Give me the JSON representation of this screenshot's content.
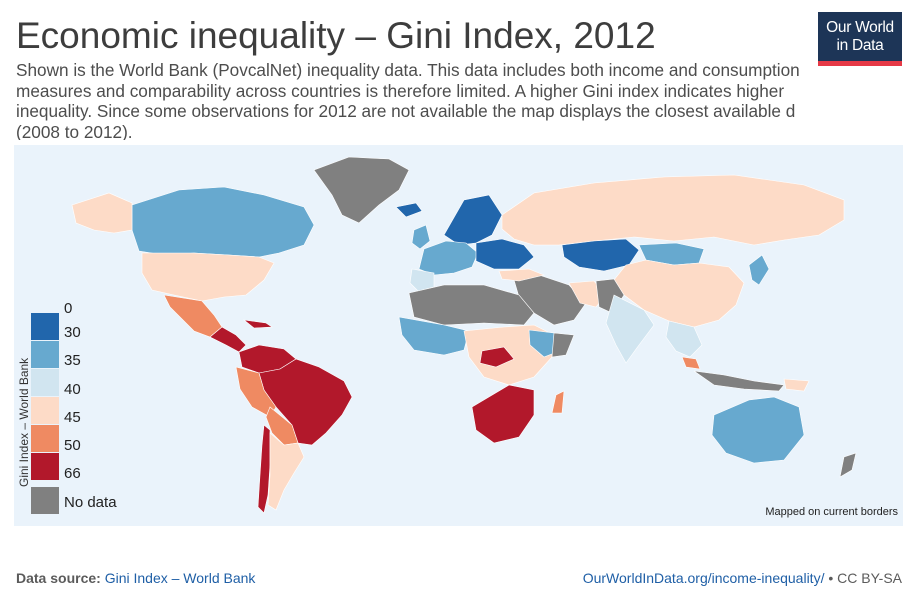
{
  "title": "Economic inequality – Gini Index, 2012",
  "subtitle": {
    "line1": "Shown is the World Bank (PovcalNet) inequality data. This data includes both income and consumption",
    "line2": "measures and comparability across countries is therefore limited. A higher Gini index indicates higher",
    "line3": "inequality. Since some observations for 2012 are not available the map displays the closest available d",
    "line4": "(2008 to 2012)."
  },
  "logo": {
    "line1": "Our World",
    "line2": "in Data"
  },
  "legend": {
    "title": "Gini Index – World Bank",
    "ticks": [
      "0",
      "30",
      "35",
      "40",
      "45",
      "50",
      "66"
    ],
    "no_data": "No data",
    "colors": [
      "#2166ac",
      "#67a9cf",
      "#d1e5f0",
      "#fddbc7",
      "#ef8a62",
      "#b2182b"
    ],
    "no_data_color": "#808080"
  },
  "map_note": "Mapped on current borders",
  "footer": {
    "source_label": "Data source:",
    "source_link": "Gini Index – World Bank",
    "url": "OurWorldInData.org/income-inequality/",
    "separator": "•",
    "license": "CC BY-SA"
  }
}
